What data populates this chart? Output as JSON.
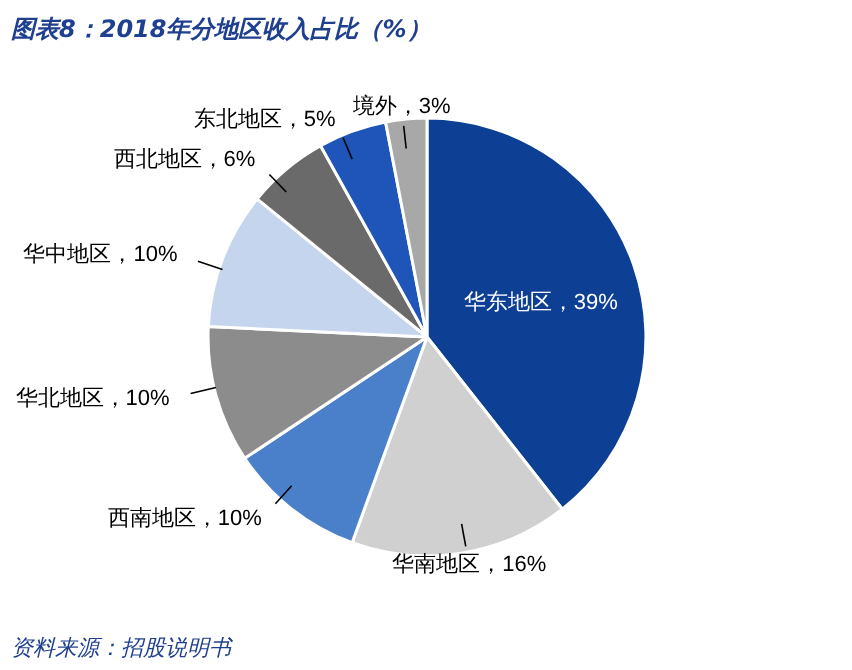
{
  "chart_data": {
    "type": "pie",
    "title": "图表8：2018年分地区收入占比（%）",
    "categories": [
      "华东地区",
      "华南地区",
      "西南地区",
      "华北地区",
      "华中地区",
      "西北地区",
      "东北地区",
      "境外"
    ],
    "values": [
      39,
      16,
      10,
      10,
      10,
      6,
      5,
      3
    ],
    "colors": [
      "#0d3f94",
      "#d0d0d0",
      "#4a7fca",
      "#8c8c8c",
      "#c5d5ee",
      "#6a6a6a",
      "#1f55b8",
      "#a8a8a8"
    ],
    "value_labels": [
      "39%",
      "16%",
      "10%",
      "10%",
      "10%",
      "6%",
      "5%",
      "3%"
    ],
    "annotations": [
      "资料来源：招股说明书"
    ]
  }
}
